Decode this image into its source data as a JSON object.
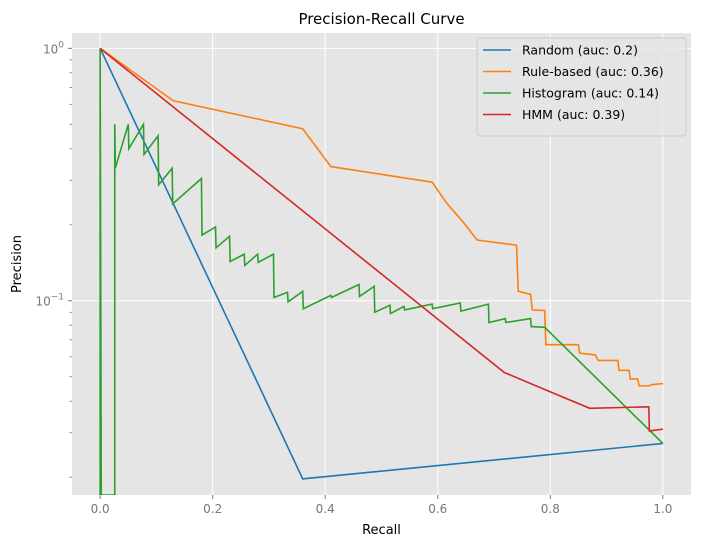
{
  "chart_data": {
    "type": "line",
    "title": "Precision-Recall Curve",
    "xlabel": "Recall",
    "ylabel": "Precision",
    "xlim": [
      -0.05,
      1.05
    ],
    "ylim": [
      0.017,
      1.15
    ],
    "yscale": "log",
    "grid": true,
    "legend_position": "top-right",
    "x_ticks": [
      {
        "value": 0.0,
        "label": "0.0"
      },
      {
        "value": 0.2,
        "label": "0.2"
      },
      {
        "value": 0.4,
        "label": "0.4"
      },
      {
        "value": 0.6,
        "label": "0.6"
      },
      {
        "value": 0.8,
        "label": "0.8"
      },
      {
        "value": 1.0,
        "label": "1.0"
      }
    ],
    "y_ticks": [
      {
        "value": 1,
        "label": "10",
        "sup": "0"
      },
      {
        "value": 0.1,
        "label": "10",
        "sup": "−1"
      }
    ],
    "y_minor_ticks": [
      0.02,
      0.03,
      0.04,
      0.05,
      0.06,
      0.07,
      0.08,
      0.09,
      0.2,
      0.3,
      0.4,
      0.5,
      0.6,
      0.7,
      0.8,
      0.9
    ],
    "series": [
      {
        "name": "Random (auc: 0.2)",
        "color": "#1f77b4",
        "points": [
          [
            0,
            1.0
          ],
          [
            0.36,
            0.0197
          ],
          [
            1.0,
            0.0272
          ]
        ]
      },
      {
        "name": "Rule-based (auc: 0.36)",
        "color": "#ff7f0e",
        "points": [
          [
            0,
            1.0
          ],
          [
            0.13,
            0.62
          ],
          [
            0.36,
            0.48
          ],
          [
            0.41,
            0.34
          ],
          [
            0.59,
            0.295
          ],
          [
            0.615,
            0.245
          ],
          [
            0.645,
            0.205
          ],
          [
            0.67,
            0.174
          ],
          [
            0.74,
            0.166
          ],
          [
            0.743,
            0.109
          ],
          [
            0.765,
            0.106
          ],
          [
            0.768,
            0.092
          ],
          [
            0.79,
            0.0915
          ],
          [
            0.792,
            0.067
          ],
          [
            0.85,
            0.067
          ],
          [
            0.852,
            0.062
          ],
          [
            0.88,
            0.061
          ],
          [
            0.885,
            0.058
          ],
          [
            0.92,
            0.058
          ],
          [
            0.922,
            0.053
          ],
          [
            0.94,
            0.053
          ],
          [
            0.942,
            0.049
          ],
          [
            0.955,
            0.049
          ],
          [
            0.958,
            0.046
          ],
          [
            0.975,
            0.046
          ],
          [
            0.98,
            0.0465
          ],
          [
            1.0,
            0.047
          ]
        ]
      },
      {
        "name": "Histogram (auc: 0.14)",
        "color": "#2ca02c",
        "points": [
          [
            0.0,
            0.017
          ],
          [
            0.0,
            1.0
          ],
          [
            0.002,
            0.017
          ],
          [
            0.026,
            0.017
          ],
          [
            0.026,
            0.5
          ],
          [
            0.027,
            0.335
          ],
          [
            0.05,
            0.5
          ],
          [
            0.051,
            0.4
          ],
          [
            0.077,
            0.5
          ],
          [
            0.078,
            0.38
          ],
          [
            0.103,
            0.45
          ],
          [
            0.104,
            0.288
          ],
          [
            0.128,
            0.335
          ],
          [
            0.129,
            0.242
          ],
          [
            0.18,
            0.305
          ],
          [
            0.181,
            0.182
          ],
          [
            0.205,
            0.196
          ],
          [
            0.206,
            0.162
          ],
          [
            0.23,
            0.18
          ],
          [
            0.231,
            0.143
          ],
          [
            0.256,
            0.153
          ],
          [
            0.257,
            0.138
          ],
          [
            0.28,
            0.153
          ],
          [
            0.281,
            0.142
          ],
          [
            0.308,
            0.153
          ],
          [
            0.309,
            0.103
          ],
          [
            0.333,
            0.108
          ],
          [
            0.334,
            0.099
          ],
          [
            0.36,
            0.109
          ],
          [
            0.361,
            0.093
          ],
          [
            0.41,
            0.105
          ],
          [
            0.411,
            0.103
          ],
          [
            0.46,
            0.116
          ],
          [
            0.461,
            0.104
          ],
          [
            0.487,
            0.114
          ],
          [
            0.488,
            0.09
          ],
          [
            0.515,
            0.096
          ],
          [
            0.516,
            0.089
          ],
          [
            0.54,
            0.095
          ],
          [
            0.541,
            0.092
          ],
          [
            0.59,
            0.097
          ],
          [
            0.591,
            0.093
          ],
          [
            0.64,
            0.098
          ],
          [
            0.641,
            0.091
          ],
          [
            0.69,
            0.097
          ],
          [
            0.691,
            0.082
          ],
          [
            0.72,
            0.085
          ],
          [
            0.721,
            0.082
          ],
          [
            0.765,
            0.085
          ],
          [
            0.766,
            0.079
          ],
          [
            0.79,
            0.0785
          ],
          [
            1.0,
            0.0272
          ]
        ]
      },
      {
        "name": "HMM (auc: 0.39)",
        "color": "#d62728",
        "points": [
          [
            0,
            1.0
          ],
          [
            0.718,
            0.052
          ],
          [
            0.79,
            0.0445
          ],
          [
            0.87,
            0.0375
          ],
          [
            0.975,
            0.038
          ],
          [
            0.976,
            0.0305
          ],
          [
            1.0,
            0.031
          ]
        ]
      }
    ]
  }
}
